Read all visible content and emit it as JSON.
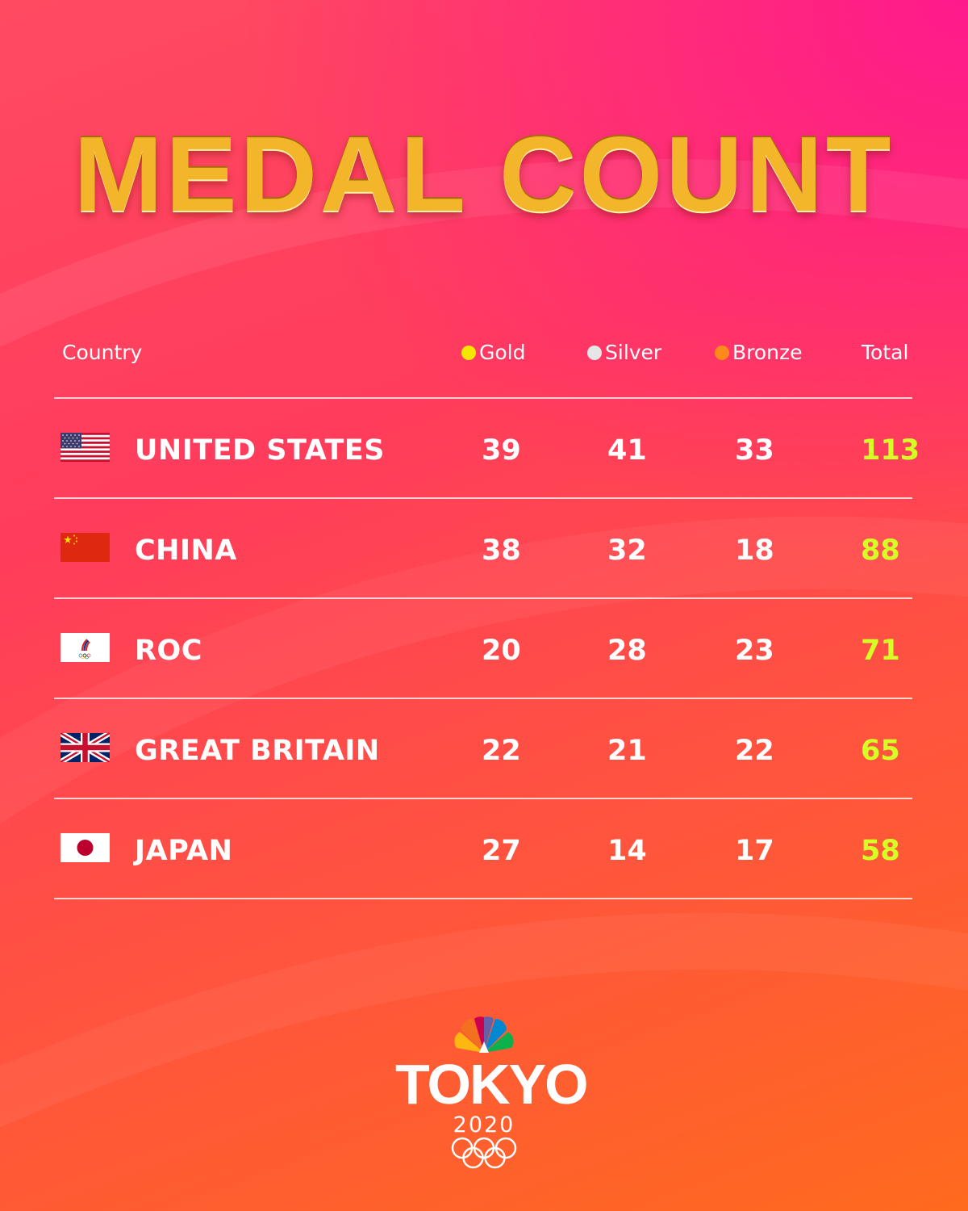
{
  "title": "MEDAL COUNT",
  "header": {
    "country": "Country",
    "gold": "Gold",
    "silver": "Silver",
    "bronze": "Bronze",
    "total": "Total"
  },
  "rows": [
    {
      "country": "UNITED STATES",
      "flag": "us-flag-icon",
      "gold": "39",
      "silver": "41",
      "bronze": "33",
      "total": "113"
    },
    {
      "country": "CHINA",
      "flag": "china-flag-icon",
      "gold": "38",
      "silver": "32",
      "bronze": "18",
      "total": "88"
    },
    {
      "country": "ROC",
      "flag": "roc-flag-icon",
      "gold": "20",
      "silver": "28",
      "bronze": "23",
      "total": "71"
    },
    {
      "country": "GREAT BRITAIN",
      "flag": "uk-flag-icon",
      "gold": "22",
      "silver": "21",
      "bronze": "22",
      "total": "65"
    },
    {
      "country": "JAPAN",
      "flag": "japan-flag-icon",
      "gold": "27",
      "silver": "14",
      "bronze": "17",
      "total": "58"
    }
  ],
  "logo": {
    "name": "TOKYO",
    "year": "2020"
  },
  "colors": {
    "gold_dot": "#f5e600",
    "silver_dot": "#e6e6e6",
    "bronze_dot": "#ff8a1c",
    "total_text": "#d6ff26",
    "title_gold": "#f3b52a"
  }
}
